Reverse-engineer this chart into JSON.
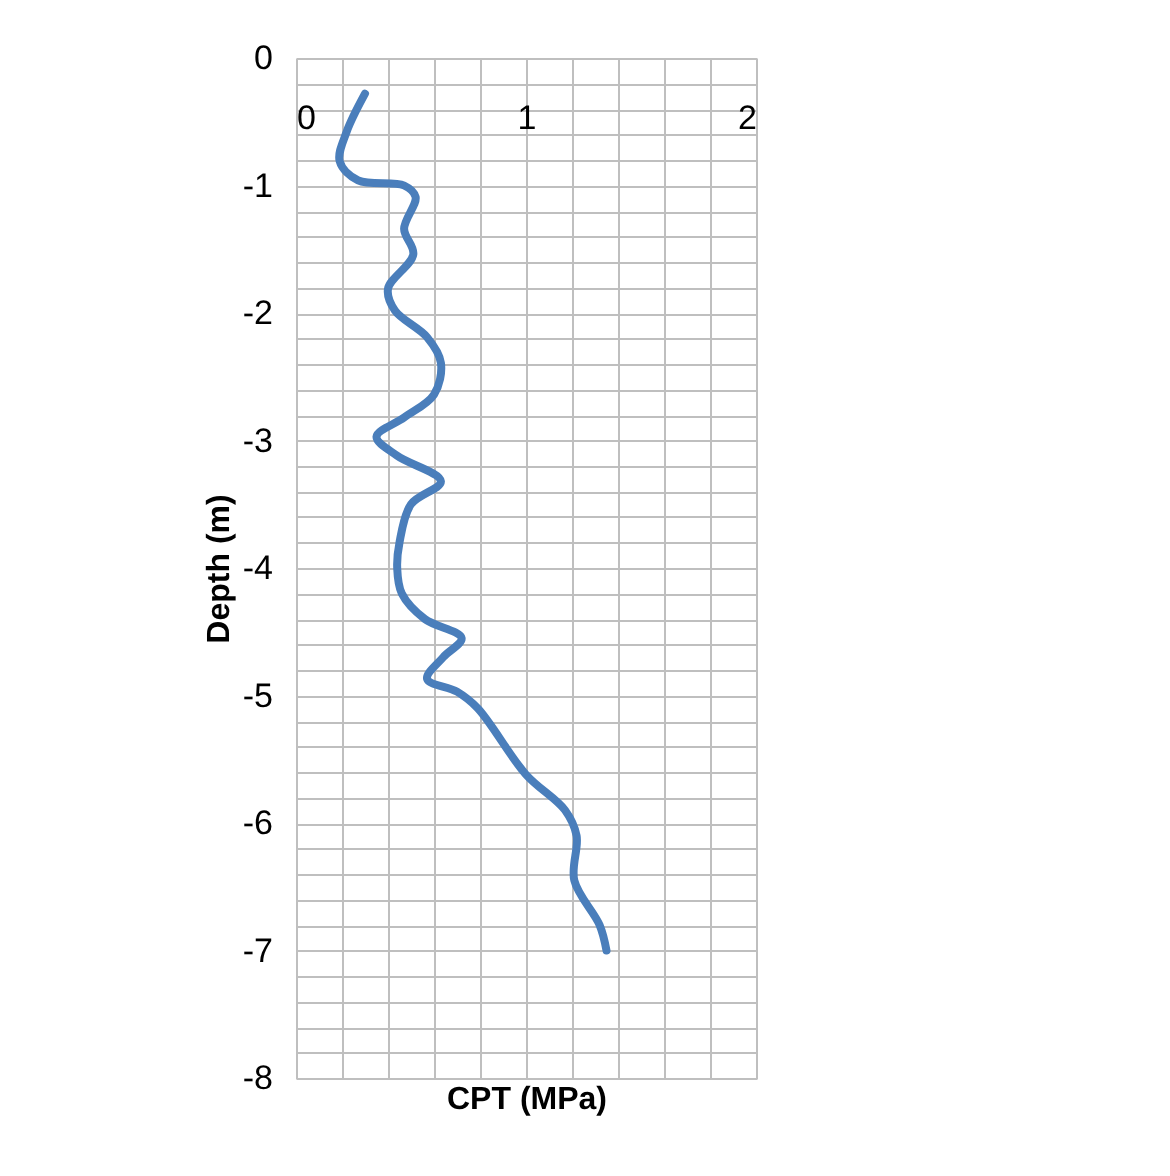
{
  "chart_data": {
    "type": "line",
    "xlabel": "CPT (MPa)",
    "ylabel": "Depth (m)",
    "series": [
      {
        "color": "#4a7ebb",
        "x": [
          0.3,
          0.22,
          0.19,
          0.27,
          0.47,
          0.52,
          0.47,
          0.51,
          0.4,
          0.43,
          0.57,
          0.63,
          0.6,
          0.47,
          0.35,
          0.44,
          0.63,
          0.5,
          0.45,
          0.44,
          0.46,
          0.56,
          0.72,
          0.64,
          0.57,
          0.7,
          0.79,
          1.0,
          1.17,
          1.22,
          1.21,
          1.32,
          1.35
        ],
        "values": [
          -0.28,
          -0.58,
          -0.81,
          -0.96,
          -1.0,
          -1.09,
          -1.34,
          -1.54,
          -1.81,
          -1.98,
          -2.19,
          -2.39,
          -2.64,
          -2.82,
          -2.97,
          -3.12,
          -3.32,
          -3.5,
          -3.8,
          -4.0,
          -4.2,
          -4.4,
          -4.55,
          -4.7,
          -4.87,
          -4.97,
          -5.1,
          -5.62,
          -5.9,
          -6.1,
          -6.45,
          -6.8,
          -7.0
        ]
      }
    ],
    "xlim": [
      0,
      2
    ],
    "xticks": [
      0,
      {
        "value": 0.2,
        "label": null
      },
      {
        "value": 0.4,
        "label": null
      },
      {
        "value": 0.6,
        "label": null
      },
      {
        "value": 0.8,
        "label": null
      },
      1,
      {
        "value": 1.2,
        "label": null
      },
      {
        "value": 1.4,
        "label": null
      },
      {
        "value": 1.6,
        "label": null
      },
      {
        "value": 1.8,
        "label": null
      },
      2
    ],
    "ylim": [
      -8,
      0
    ],
    "yticks": [
      -8,
      {
        "value": -7.8,
        "label": null
      },
      {
        "value": -7.6,
        "label": null
      },
      {
        "value": -7.4,
        "label": null
      },
      {
        "value": -7.2,
        "label": null
      },
      -7,
      {
        "value": -6.8,
        "label": null
      },
      {
        "value": -6.6,
        "label": null
      },
      {
        "value": -6.4,
        "label": null
      },
      {
        "value": -6.2,
        "label": null
      },
      -6,
      {
        "value": -5.8,
        "label": null
      },
      {
        "value": -5.6,
        "label": null
      },
      {
        "value": -5.4,
        "label": null
      },
      {
        "value": -5.2,
        "label": null
      },
      -5,
      {
        "value": -4.8,
        "label": null
      },
      {
        "value": -4.6,
        "label": null
      },
      {
        "value": -4.4,
        "label": null
      },
      {
        "value": -4.2,
        "label": null
      },
      -4,
      {
        "value": -3.8,
        "label": null
      },
      {
        "value": -3.6,
        "label": null
      },
      {
        "value": -3.4,
        "label": null
      },
      {
        "value": -3.2,
        "label": null
      },
      -3,
      {
        "value": -2.8,
        "label": null
      },
      {
        "value": -2.6,
        "label": null
      },
      {
        "value": -2.4,
        "label": null
      },
      {
        "value": -2.2,
        "label": null
      },
      -2,
      {
        "value": -1.8,
        "label": null
      },
      {
        "value": -1.6,
        "label": null
      },
      {
        "value": -1.4,
        "label": null
      },
      {
        "value": -1.2,
        "label": null
      },
      -1,
      {
        "value": -0.8,
        "label": null
      },
      {
        "value": -0.6,
        "label": null
      },
      {
        "value": -0.4,
        "label": null
      },
      {
        "value": -0.2,
        "label": null
      },
      0
    ],
    "grid": true,
    "legend": false,
    "marker": "none",
    "line_style": "solid"
  }
}
